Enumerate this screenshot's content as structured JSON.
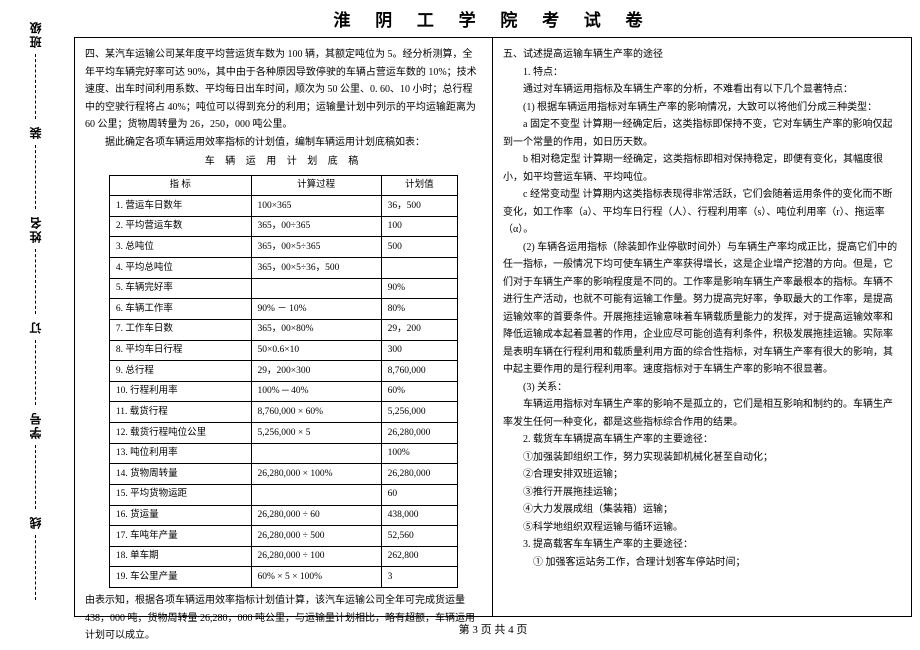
{
  "header": {
    "title": "淮 阴 工 学 院 考 试 卷"
  },
  "binding": {
    "labels": [
      "班级",
      "姓名",
      "学号"
    ],
    "marks": [
      "装",
      "订",
      "线"
    ]
  },
  "left": {
    "para1": "四、某汽车运输公司某年度平均营运货车数为 100 辆，其额定吨位为 5。经分析测算，全年平均车辆完好率可达 90%，其中由于各种原因导致停驶的车辆占营运车数的 10%；技术速度、出车时间利用系数、平均每日出车时间，顺次为 50 公里、0. 60、10 小时；总行程中的空驶行程将占 40%；吨位可以得到充分的利用；运输量计划中列示的平均运输距离为 60 公里；货物周转量为 26，250，000 吨公里。",
    "para2": "据此确定各项车辆运用效率指标的计划值，编制车辆运用计划底稿如表：",
    "tableCaption": "车 辆 运 用 计 划 底 稿",
    "table": {
      "headers": [
        "指    标",
        "计算过程",
        "计划值"
      ],
      "rows": [
        [
          "1. 营运车日数年",
          "100×365",
          "36，500"
        ],
        [
          "2. 平均营运车数",
          "365，00÷365",
          "100"
        ],
        [
          "3. 总吨位",
          "365，00×5÷365",
          "500"
        ],
        [
          "4. 平均总吨位",
          "365，00×5÷36，500",
          ""
        ],
        [
          "5. 车辆完好率",
          "",
          "90%"
        ],
        [
          "6. 车辆工作率",
          "90% － 10%",
          "80%"
        ],
        [
          "7. 工作车日数",
          "365，00×80%",
          "29，200"
        ],
        [
          "8. 平均车日行程",
          "50×0.6×10",
          "300"
        ],
        [
          "9. 总行程",
          "29，200×300",
          "8,760,000"
        ],
        [
          "10. 行程利用率",
          "100% ─ 40%",
          "60%"
        ],
        [
          "11. 载货行程",
          "8,760,000 × 60%",
          "5,256,000"
        ],
        [
          "12. 载货行程吨位公里",
          "5,256,000 × 5",
          "26,280,000"
        ],
        [
          "13. 吨位利用率",
          "",
          "100%"
        ],
        [
          "14. 货物周转量",
          "26,280,000 × 100%",
          "26,280,000"
        ],
        [
          "15. 平均货物运距",
          "",
          "60"
        ],
        [
          "16. 货运量",
          "26,280,000 ÷ 60",
          "438,000"
        ],
        [
          "17. 车吨年产量",
          "26,280,000 ÷ 500",
          "52,560"
        ],
        [
          "18. 单车期",
          "26,280,000 ÷ 100",
          "262,800"
        ],
        [
          "19. 车公里产量",
          "60% × 5 × 100%",
          "3"
        ]
      ]
    },
    "para3": "由表示知，根据各项车辆运用效率指标计划值计算，该汽车运输公司全年可完成货运量 438，000 吨，货物周转量 26,280，000 吨公里，与运输量计划相比，略有超额，车辆运用计划可以成立。"
  },
  "right": {
    "q5": "五、试述提高运输车辆生产率的途径",
    "p1": "1. 特点：",
    "p1a": "通过对车辆运用指标及车辆生产率的分析，不难看出有以下几个显著特点：",
    "p1b": "(1) 根据车辆运用指标对车辆生产率的影响情况，大致可以将他们分成三种类型：",
    "p1c": "a 固定不变型   计算期一经确定后，这类指标即保持不变，它对车辆生产率的影响仅起到一个常量的作用，如日历天数。",
    "p1d": "b 相对稳定型   计算期一经确定，这类指标即相对保持稳定，即便有变化，其幅度很小，如平均营运车辆、平均吨位。",
    "p1e": "c 经常变动型   计算期内这类指标表现得非常活跃，它们会随着运用条件的变化而不断变化，如工作率（a）、平均车日行程（人）、行程利用率（s）、吨位利用率（r）、拖运率（α）。",
    "p2": "(2) 车辆各运用指标（除装卸作业停歇时间外）与车辆生产率均成正比，提高它们中的任一指标，一般情况下均可使车辆生产率获得增长，这是企业增产挖潜的方向。但是，它们对于车辆生产率的影响程度是不同的。工作率是影响车辆生产率最根本的指标。车辆不进行生产活动，也就不可能有运输工作量。努力提高完好率，争取最大的工作率，是提高运输效率的首要条件。开展拖挂运输意味着车辆载质量能力的发挥，对于提高运输效率和降低运输成本起着显著的作用，企业应尽可能创造有利条件，积极发展拖挂运输。实际率是表明车辆在行程利用和载质量利用方面的综合性指标，对车辆生产率有很大的影响，其中起主要作用的是行程利用率。速度指标对于车辆生产率的影响不很显著。",
    "p3": "(3) 关系：",
    "p3a": "车辆运用指标对车辆生产率的影响不是孤立的，它们是相互影响和制约的。车辆生产率发生任何一种变化，都是这些指标综合作用的结果。",
    "p4": "2. 载货车车辆提高车辆生产率的主要途径：",
    "p4a": "①加强装卸组织工作，努力实现装卸机械化甚至自动化；",
    "p4b": "②合理安排双班运输；",
    "p4c": "③推行开展拖挂运输；",
    "p4d": "④大力发展成组（集装箱）运输；",
    "p4e": "⑤科学地组织双程运输与循环运输。",
    "p5": "3. 提高载客车车辆生产率的主要途径：",
    "p5a": "① 加强客运站务工作，合理计划客车停站时间；"
  },
  "footer": {
    "pageNum": "第 3 页 共 4 页"
  }
}
